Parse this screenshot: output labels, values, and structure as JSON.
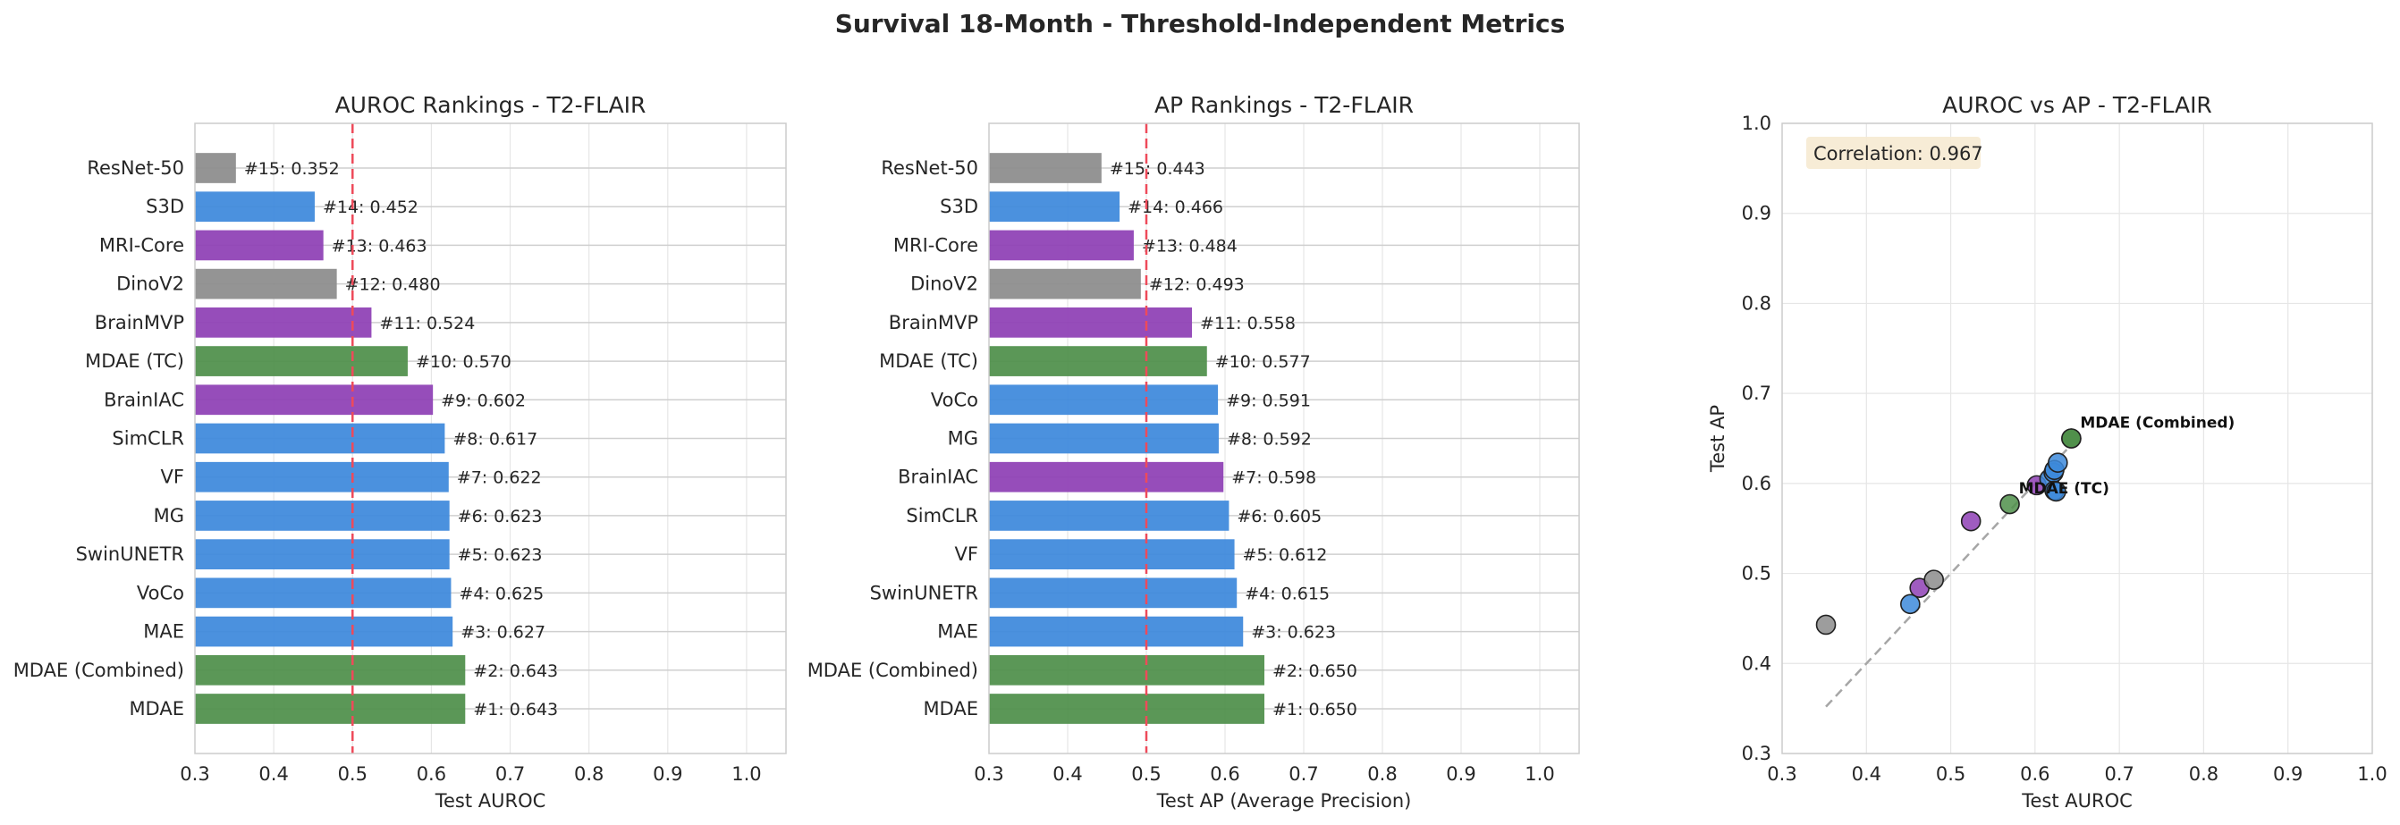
{
  "suptitle": "Survival 18-Month - Threshold-Independent Metrics",
  "colors": {
    "green": "#4f8f4a",
    "blue": "#3d89db",
    "purple": "#8e3fb5",
    "gray": "#8c8c8c",
    "refline": "#ee4a5a",
    "grid": "#e6e6e6",
    "corr_box": "#f6ead2"
  },
  "chart_data": [
    {
      "type": "bar",
      "orientation": "horizontal",
      "title": "AUROC Rankings - T2-FLAIR",
      "xlabel": "Test AUROC",
      "xlim": [
        0.3,
        1.05
      ],
      "xticks": [
        "0.3",
        "0.4",
        "0.5",
        "0.6",
        "0.7",
        "0.8",
        "0.9",
        "1.0"
      ],
      "reference_line": 0.5,
      "bars": [
        {
          "label": "MDAE",
          "value": 0.643,
          "rank_label": "#1: 0.643",
          "color": "green"
        },
        {
          "label": "MDAE (Combined)",
          "value": 0.643,
          "rank_label": "#2: 0.643",
          "color": "green"
        },
        {
          "label": "MAE",
          "value": 0.627,
          "rank_label": "#3: 0.627",
          "color": "blue"
        },
        {
          "label": "VoCo",
          "value": 0.625,
          "rank_label": "#4: 0.625",
          "color": "blue"
        },
        {
          "label": "SwinUNETR",
          "value": 0.623,
          "rank_label": "#5: 0.623",
          "color": "blue"
        },
        {
          "label": "MG",
          "value": 0.623,
          "rank_label": "#6: 0.623",
          "color": "blue"
        },
        {
          "label": "VF",
          "value": 0.622,
          "rank_label": "#7: 0.622",
          "color": "blue"
        },
        {
          "label": "SimCLR",
          "value": 0.617,
          "rank_label": "#8: 0.617",
          "color": "blue"
        },
        {
          "label": "BrainIAC",
          "value": 0.602,
          "rank_label": "#9: 0.602",
          "color": "purple"
        },
        {
          "label": "MDAE (TC)",
          "value": 0.57,
          "rank_label": "#10: 0.570",
          "color": "green"
        },
        {
          "label": "BrainMVP",
          "value": 0.524,
          "rank_label": "#11: 0.524",
          "color": "purple"
        },
        {
          "label": "DinoV2",
          "value": 0.48,
          "rank_label": "#12: 0.480",
          "color": "gray"
        },
        {
          "label": "MRI-Core",
          "value": 0.463,
          "rank_label": "#13: 0.463",
          "color": "purple"
        },
        {
          "label": "S3D",
          "value": 0.452,
          "rank_label": "#14: 0.452",
          "color": "blue"
        },
        {
          "label": "ResNet-50",
          "value": 0.352,
          "rank_label": "#15: 0.352",
          "color": "gray"
        }
      ]
    },
    {
      "type": "bar",
      "orientation": "horizontal",
      "title": "AP Rankings - T2-FLAIR",
      "xlabel": "Test AP (Average Precision)",
      "xlim": [
        0.3,
        1.05
      ],
      "xticks": [
        "0.3",
        "0.4",
        "0.5",
        "0.6",
        "0.7",
        "0.8",
        "0.9",
        "1.0"
      ],
      "reference_line": 0.5,
      "bars": [
        {
          "label": "MDAE",
          "value": 0.65,
          "rank_label": "#1: 0.650",
          "color": "green"
        },
        {
          "label": "MDAE (Combined)",
          "value": 0.65,
          "rank_label": "#2: 0.650",
          "color": "green"
        },
        {
          "label": "MAE",
          "value": 0.623,
          "rank_label": "#3: 0.623",
          "color": "blue"
        },
        {
          "label": "SwinUNETR",
          "value": 0.615,
          "rank_label": "#4: 0.615",
          "color": "blue"
        },
        {
          "label": "VF",
          "value": 0.612,
          "rank_label": "#5: 0.612",
          "color": "blue"
        },
        {
          "label": "SimCLR",
          "value": 0.605,
          "rank_label": "#6: 0.605",
          "color": "blue"
        },
        {
          "label": "BrainIAC",
          "value": 0.598,
          "rank_label": "#7: 0.598",
          "color": "purple"
        },
        {
          "label": "MG",
          "value": 0.592,
          "rank_label": "#8: 0.592",
          "color": "blue"
        },
        {
          "label": "VoCo",
          "value": 0.591,
          "rank_label": "#9: 0.591",
          "color": "blue"
        },
        {
          "label": "MDAE (TC)",
          "value": 0.577,
          "rank_label": "#10: 0.577",
          "color": "green"
        },
        {
          "label": "BrainMVP",
          "value": 0.558,
          "rank_label": "#11: 0.558",
          "color": "purple"
        },
        {
          "label": "DinoV2",
          "value": 0.493,
          "rank_label": "#12: 0.493",
          "color": "gray"
        },
        {
          "label": "MRI-Core",
          "value": 0.484,
          "rank_label": "#13: 0.484",
          "color": "purple"
        },
        {
          "label": "S3D",
          "value": 0.466,
          "rank_label": "#14: 0.466",
          "color": "blue"
        },
        {
          "label": "ResNet-50",
          "value": 0.443,
          "rank_label": "#15: 0.443",
          "color": "gray"
        }
      ]
    },
    {
      "type": "scatter",
      "title": "AUROC vs AP - T2-FLAIR",
      "xlabel": "Test AUROC",
      "ylabel": "Test AP",
      "xlim": [
        0.3,
        1.0
      ],
      "ylim": [
        0.3,
        1.0
      ],
      "xticks": [
        "0.3",
        "0.4",
        "0.5",
        "0.6",
        "0.7",
        "0.8",
        "0.9",
        "1.0"
      ],
      "yticks": [
        "0.3",
        "0.4",
        "0.5",
        "0.6",
        "0.7",
        "0.8",
        "0.9",
        "1.0"
      ],
      "correlation_text": "Correlation: 0.967",
      "trend_line": {
        "x": [
          0.352,
          0.643
        ],
        "y": [
          0.352,
          0.643
        ]
      },
      "points": [
        {
          "model": "MDAE",
          "x": 0.643,
          "y": 0.65,
          "color": "green"
        },
        {
          "model": "MDAE (Combined)",
          "x": 0.643,
          "y": 0.65,
          "color": "green",
          "annotation": "MDAE (Combined)"
        },
        {
          "model": "MAE",
          "x": 0.627,
          "y": 0.623,
          "color": "blue"
        },
        {
          "model": "VoCo",
          "x": 0.625,
          "y": 0.591,
          "color": "blue"
        },
        {
          "model": "SwinUNETR",
          "x": 0.623,
          "y": 0.615,
          "color": "blue"
        },
        {
          "model": "MG",
          "x": 0.623,
          "y": 0.592,
          "color": "blue"
        },
        {
          "model": "VF",
          "x": 0.622,
          "y": 0.612,
          "color": "blue"
        },
        {
          "model": "SimCLR",
          "x": 0.617,
          "y": 0.605,
          "color": "blue"
        },
        {
          "model": "BrainIAC",
          "x": 0.602,
          "y": 0.598,
          "color": "purple"
        },
        {
          "model": "MDAE (TC)",
          "x": 0.57,
          "y": 0.577,
          "color": "green",
          "annotation": "MDAE (TC)"
        },
        {
          "model": "BrainMVP",
          "x": 0.524,
          "y": 0.558,
          "color": "purple"
        },
        {
          "model": "DinoV2",
          "x": 0.48,
          "y": 0.493,
          "color": "gray"
        },
        {
          "model": "MRI-Core",
          "x": 0.463,
          "y": 0.484,
          "color": "purple"
        },
        {
          "model": "S3D",
          "x": 0.452,
          "y": 0.466,
          "color": "blue"
        },
        {
          "model": "ResNet-50",
          "x": 0.352,
          "y": 0.443,
          "color": "gray"
        }
      ]
    }
  ]
}
